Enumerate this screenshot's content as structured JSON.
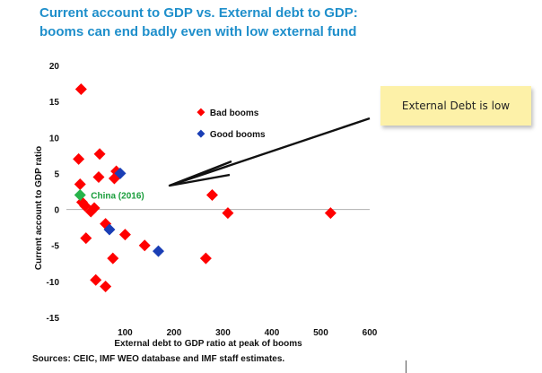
{
  "chart_data": {
    "type": "scatter",
    "title_lines": [
      "Current account to GDP vs. External debt to GDP:",
      "booms can end badly even with low external fund"
    ],
    "xlabel": "External debt to GDP ratio at peak of booms",
    "ylabel": "Current account to GDP ratio",
    "xlim": [
      -20,
      600
    ],
    "ylim": [
      -15,
      20
    ],
    "xticks": [
      0,
      100,
      200,
      300,
      400,
      500,
      600
    ],
    "yticks": [
      -15,
      -10,
      -5,
      0,
      5,
      10,
      15,
      20
    ],
    "xtick_labels": [
      "",
      "100",
      "200",
      "300",
      "400",
      "500",
      "600"
    ],
    "ytick_labels": [
      "-15",
      "-10",
      "-5",
      "0",
      "5",
      "10",
      "15",
      "20"
    ],
    "legend": {
      "position": "upper-right-inside"
    },
    "series": [
      {
        "name": "Bad booms",
        "marker": "diamond",
        "color": "#ff0000",
        "points": [
          [
            10,
            16.7
          ],
          [
            5,
            7
          ],
          [
            8,
            3.5
          ],
          [
            12,
            1
          ],
          [
            18,
            0.5
          ],
          [
            30,
            -0.3
          ],
          [
            37,
            0.2
          ],
          [
            48,
            7.7
          ],
          [
            46,
            4.5
          ],
          [
            20,
            -4
          ],
          [
            82,
            5.3
          ],
          [
            78,
            4.3
          ],
          [
            60,
            -2
          ],
          [
            100,
            -3.5
          ],
          [
            140,
            -5
          ],
          [
            75,
            -6.8
          ],
          [
            40,
            -9.8
          ],
          [
            60,
            -10.7
          ],
          [
            265,
            -6.8
          ],
          [
            278,
            2
          ],
          [
            310,
            -0.5
          ],
          [
            520,
            -0.5
          ]
        ]
      },
      {
        "name": "Good booms",
        "marker": "diamond",
        "color": "#1a3eb5",
        "points": [
          [
            90,
            5
          ],
          [
            68,
            -2.8
          ],
          [
            168,
            -5.8
          ]
        ]
      }
    ],
    "annotations": [
      {
        "text": "China (2016)",
        "x": 8,
        "y": 2,
        "color": "#1a9e3c"
      }
    ]
  },
  "callout": {
    "text": "External Debt is low"
  },
  "source": "Sources: CEIC, IMF WEO database and IMF staff estimates."
}
